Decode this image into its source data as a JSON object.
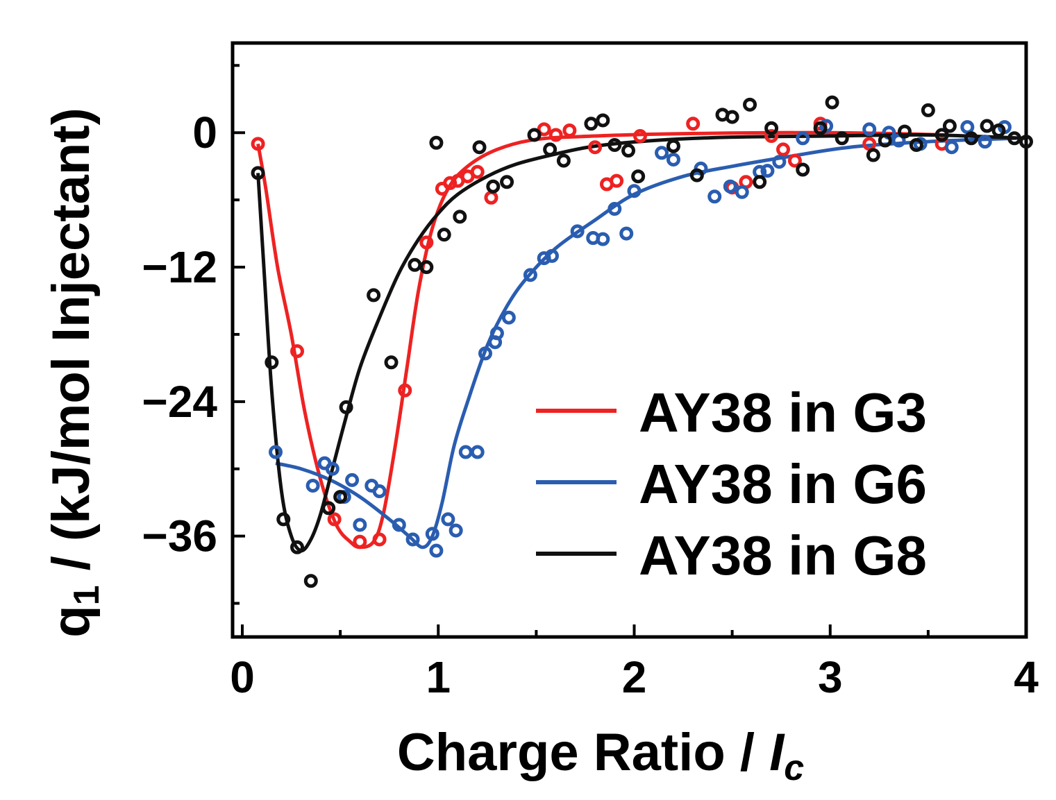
{
  "chart_data": {
    "type": "scatter",
    "title": "",
    "xlabel": "Charge Ratio / ",
    "xlabel_italic": "I",
    "xlabel_sub": "c",
    "ylabel_prefix": "q",
    "ylabel_sub": "1",
    "ylabel_rest": " / (kJ/mol Injectant)",
    "xlim": [
      0,
      4
    ],
    "ylim": [
      -45,
      8
    ],
    "xticks": [
      0,
      1,
      2,
      3,
      4
    ],
    "xtick_labels": [
      "0",
      "1",
      "2",
      "3",
      "4"
    ],
    "yticks": [
      0,
      -12,
      -24,
      -36
    ],
    "ytick_labels": [
      "0",
      "−12",
      "−24",
      "−36"
    ],
    "legend_position": "bottom-right",
    "series": [
      {
        "name": "AY38 in G3",
        "color": "#ee2222",
        "points": [
          [
            0.08,
            -1
          ],
          [
            0.28,
            -19.5
          ],
          [
            0.47,
            -34.5
          ],
          [
            0.6,
            -36.5
          ],
          [
            0.7,
            -36.3
          ],
          [
            0.83,
            -23
          ],
          [
            0.94,
            -9.8
          ],
          [
            1.02,
            -5
          ],
          [
            1.06,
            -4.5
          ],
          [
            1.1,
            -4.3
          ],
          [
            1.15,
            -3.9
          ],
          [
            1.2,
            -3.5
          ],
          [
            1.27,
            -5.8
          ],
          [
            1.54,
            0.3
          ],
          [
            1.6,
            -0.2
          ],
          [
            1.67,
            0.2
          ],
          [
            1.8,
            -1.3
          ],
          [
            1.86,
            -4.6
          ],
          [
            1.91,
            -4.3
          ],
          [
            2.03,
            -0.3
          ],
          [
            2.3,
            0.8
          ],
          [
            2.5,
            -4.9
          ],
          [
            2.57,
            -4.4
          ],
          [
            2.7,
            -0.3
          ],
          [
            2.76,
            -1.5
          ],
          [
            2.82,
            -2.5
          ],
          [
            2.95,
            0.8
          ],
          [
            3.2,
            -1
          ],
          [
            3.57,
            -1
          ]
        ],
        "fit": [
          [
            0.08,
            -1
          ],
          [
            0.12,
            -5
          ],
          [
            0.18,
            -12
          ],
          [
            0.25,
            -18
          ],
          [
            0.32,
            -25
          ],
          [
            0.4,
            -31
          ],
          [
            0.48,
            -35
          ],
          [
            0.55,
            -36.5
          ],
          [
            0.6,
            -37
          ],
          [
            0.67,
            -36.5
          ],
          [
            0.72,
            -34
          ],
          [
            0.78,
            -28
          ],
          [
            0.84,
            -21
          ],
          [
            0.9,
            -14
          ],
          [
            0.97,
            -8.5
          ],
          [
            1.05,
            -5
          ],
          [
            1.15,
            -3
          ],
          [
            1.3,
            -1.5
          ],
          [
            1.5,
            -0.6
          ],
          [
            1.8,
            -0.3
          ],
          [
            2.2,
            -0.1
          ],
          [
            3,
            0
          ],
          [
            3.6,
            -0.2
          ]
        ]
      },
      {
        "name": "AY38 in G6",
        "color": "#2a5db0",
        "points": [
          [
            0.17,
            -28.5
          ],
          [
            0.36,
            -31.5
          ],
          [
            0.42,
            -29.5
          ],
          [
            0.46,
            -30
          ],
          [
            0.52,
            -32.5
          ],
          [
            0.56,
            -31
          ],
          [
            0.6,
            -35
          ],
          [
            0.66,
            -31.5
          ],
          [
            0.7,
            -32
          ],
          [
            0.8,
            -35
          ],
          [
            0.87,
            -36.3
          ],
          [
            0.97,
            -35.8
          ],
          [
            0.99,
            -37.3
          ],
          [
            1.05,
            -34.5
          ],
          [
            1.09,
            -35.5
          ],
          [
            1.14,
            -28.5
          ],
          [
            1.2,
            -28.5
          ],
          [
            1.24,
            -19.7
          ],
          [
            1.29,
            -18.7
          ],
          [
            1.3,
            -17.9
          ],
          [
            1.36,
            -16.5
          ],
          [
            1.47,
            -12.7
          ],
          [
            1.54,
            -11.2
          ],
          [
            1.58,
            -11
          ],
          [
            1.71,
            -8.8
          ],
          [
            1.79,
            -9.4
          ],
          [
            1.84,
            -9.5
          ],
          [
            1.9,
            -6.8
          ],
          [
            1.96,
            -9
          ],
          [
            2,
            -5.2
          ],
          [
            2.14,
            -1.8
          ],
          [
            2.2,
            -2.4
          ],
          [
            2.34,
            -3.2
          ],
          [
            2.41,
            -5.7
          ],
          [
            2.49,
            -4.8
          ],
          [
            2.55,
            -5.3
          ],
          [
            2.64,
            -3.5
          ],
          [
            2.68,
            -3.4
          ],
          [
            2.74,
            -2.6
          ],
          [
            2.86,
            -0.5
          ],
          [
            2.98,
            0.6
          ],
          [
            3.2,
            0.3
          ],
          [
            3.3,
            0
          ],
          [
            3.35,
            -0.7
          ],
          [
            3.46,
            -1
          ],
          [
            3.62,
            -1.3
          ],
          [
            3.7,
            0.5
          ],
          [
            3.79,
            -0.8
          ],
          [
            3.89,
            0.5
          ]
        ],
        "fit": [
          [
            0.17,
            -29.5
          ],
          [
            0.3,
            -30
          ],
          [
            0.45,
            -31
          ],
          [
            0.6,
            -32.5
          ],
          [
            0.75,
            -34.5
          ],
          [
            0.85,
            -36
          ],
          [
            0.92,
            -37
          ],
          [
            0.97,
            -36
          ],
          [
            1.02,
            -33
          ],
          [
            1.08,
            -28
          ],
          [
            1.15,
            -24
          ],
          [
            1.25,
            -19
          ],
          [
            1.35,
            -15.5
          ],
          [
            1.45,
            -13
          ],
          [
            1.6,
            -10.3
          ],
          [
            1.8,
            -7.8
          ],
          [
            2,
            -5.5
          ],
          [
            2.25,
            -3.9
          ],
          [
            2.5,
            -3
          ],
          [
            2.8,
            -2.1
          ],
          [
            3.1,
            -1.3
          ],
          [
            3.5,
            -0.8
          ],
          [
            3.95,
            -0.5
          ]
        ]
      },
      {
        "name": "AY38 in G8",
        "color": "#111111",
        "points": [
          [
            0.08,
            -3.6
          ],
          [
            0.15,
            -20.5
          ],
          [
            0.21,
            -34.5
          ],
          [
            0.28,
            -37
          ],
          [
            0.35,
            -40
          ],
          [
            0.44,
            -33.5
          ],
          [
            0.5,
            -32.5
          ],
          [
            0.53,
            -24.5
          ],
          [
            0.67,
            -14.5
          ],
          [
            0.76,
            -20.5
          ],
          [
            0.88,
            -11.8
          ],
          [
            0.94,
            -12
          ],
          [
            0.99,
            -0.9
          ],
          [
            1.03,
            -9.1
          ],
          [
            1.11,
            -7.5
          ],
          [
            1.21,
            -1.3
          ],
          [
            1.28,
            -4.8
          ],
          [
            1.35,
            -4.4
          ],
          [
            1.49,
            -0.2
          ],
          [
            1.57,
            -1.5
          ],
          [
            1.64,
            -2.5
          ],
          [
            1.78,
            0.8
          ],
          [
            1.84,
            1.1
          ],
          [
            1.9,
            -1.1
          ],
          [
            1.97,
            -1.6
          ],
          [
            2.02,
            -3.9
          ],
          [
            2.2,
            -1.2
          ],
          [
            2.32,
            -3.8
          ],
          [
            2.45,
            1.6
          ],
          [
            2.5,
            1.4
          ],
          [
            2.59,
            2.5
          ],
          [
            2.64,
            -4.4
          ],
          [
            2.7,
            0.4
          ],
          [
            2.86,
            -3.3
          ],
          [
            2.95,
            0.4
          ],
          [
            3.01,
            2.7
          ],
          [
            3.06,
            -0.5
          ],
          [
            3.22,
            -2
          ],
          [
            3.28,
            -0.7
          ],
          [
            3.38,
            0.1
          ],
          [
            3.44,
            -1.1
          ],
          [
            3.5,
            2
          ],
          [
            3.57,
            -0.2
          ],
          [
            3.61,
            0.6
          ],
          [
            3.72,
            -0.5
          ],
          [
            3.8,
            0.6
          ],
          [
            3.86,
            0.2
          ],
          [
            3.94,
            -0.5
          ],
          [
            4,
            -0.8
          ]
        ],
        "fit": [
          [
            0.08,
            -3.6
          ],
          [
            0.11,
            -12
          ],
          [
            0.15,
            -23
          ],
          [
            0.2,
            -32
          ],
          [
            0.25,
            -36
          ],
          [
            0.3,
            -37.3
          ],
          [
            0.35,
            -36.3
          ],
          [
            0.4,
            -34
          ],
          [
            0.46,
            -30
          ],
          [
            0.52,
            -26
          ],
          [
            0.6,
            -21
          ],
          [
            0.7,
            -16.5
          ],
          [
            0.8,
            -12.5
          ],
          [
            0.9,
            -9.5
          ],
          [
            1.0,
            -7.2
          ],
          [
            1.1,
            -5.5
          ],
          [
            1.25,
            -3.9
          ],
          [
            1.4,
            -2.8
          ],
          [
            1.6,
            -1.9
          ],
          [
            1.8,
            -1.2
          ],
          [
            2.1,
            -0.7
          ],
          [
            2.5,
            -0.4
          ],
          [
            3,
            -0.3
          ],
          [
            3.5,
            -0.2
          ],
          [
            4,
            -0.5
          ]
        ]
      }
    ]
  }
}
